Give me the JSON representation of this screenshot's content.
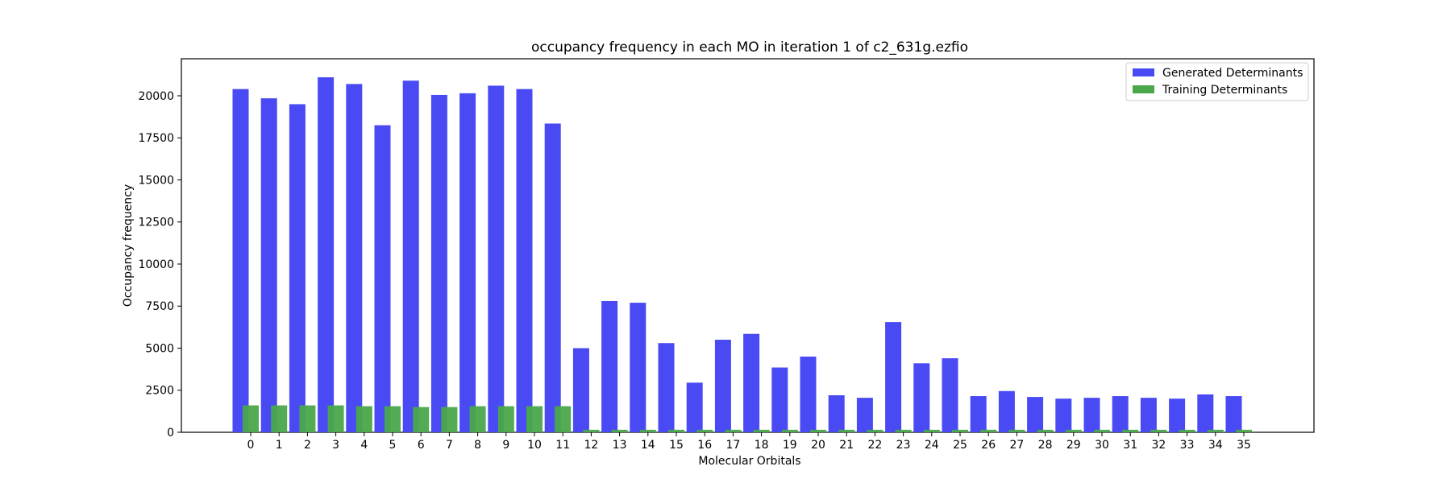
{
  "chart_data": {
    "type": "bar",
    "title": "occupancy frequency in each MO in iteration 1 of c2_631g.ezfio",
    "xlabel": "Molecular Orbitals",
    "ylabel": "Occupancy frequency",
    "ylim": [
      0,
      22200
    ],
    "yticks": [
      0,
      2500,
      5000,
      7500,
      10000,
      12500,
      15000,
      17500,
      20000
    ],
    "categories": [
      "0",
      "1",
      "2",
      "3",
      "4",
      "5",
      "6",
      "7",
      "8",
      "9",
      "10",
      "11",
      "12",
      "13",
      "14",
      "15",
      "16",
      "17",
      "18",
      "19",
      "20",
      "21",
      "22",
      "23",
      "24",
      "25",
      "26",
      "27",
      "28",
      "29",
      "30",
      "31",
      "32",
      "33",
      "34",
      "35"
    ],
    "legend_position": "top-right",
    "grid": false,
    "series": [
      {
        "name": "Generated Determinants",
        "color": "#4a4af5",
        "values": [
          20400,
          19850,
          19500,
          21100,
          20700,
          18250,
          20900,
          20050,
          20150,
          20600,
          20400,
          18350,
          5000,
          7800,
          7700,
          5300,
          2950,
          5500,
          5850,
          3850,
          4500,
          2200,
          2050,
          6550,
          4100,
          4400,
          2150,
          2450,
          2100,
          2000,
          2050,
          2150,
          2050,
          2000,
          2250,
          2150
        ]
      },
      {
        "name": "Training Determinants",
        "color": "#4aa84a",
        "values": [
          1600,
          1600,
          1600,
          1600,
          1550,
          1550,
          1500,
          1500,
          1550,
          1550,
          1550,
          1550,
          150,
          150,
          150,
          150,
          150,
          150,
          150,
          150,
          150,
          150,
          150,
          150,
          150,
          150,
          150,
          150,
          150,
          150,
          150,
          150,
          150,
          150,
          150,
          150
        ]
      }
    ]
  }
}
